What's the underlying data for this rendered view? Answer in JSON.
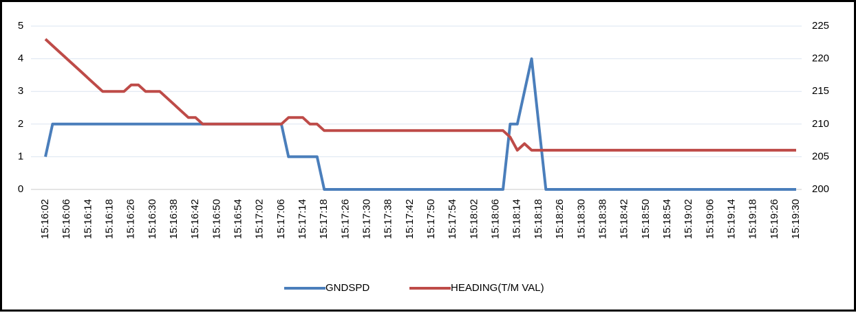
{
  "chart_data": {
    "type": "line",
    "categories": [
      "15:16:02",
      null,
      null,
      "15:16:06",
      null,
      null,
      "15:16:14",
      null,
      null,
      "15:16:18",
      null,
      null,
      "15:16:26",
      null,
      null,
      "15:16:30",
      null,
      null,
      "15:16:38",
      null,
      null,
      "15:16:42",
      null,
      null,
      "15:16:50",
      null,
      null,
      "15:16:54",
      null,
      null,
      "15:17:02",
      null,
      null,
      "15:17:06",
      null,
      null,
      "15:17:14",
      null,
      null,
      "15:17:18",
      null,
      null,
      "15:17:26",
      null,
      null,
      "15:17:30",
      null,
      null,
      "15:17:38",
      null,
      null,
      "15:17:42",
      null,
      null,
      "15:17:50",
      null,
      null,
      "15:17:54",
      null,
      null,
      "15:18:02",
      null,
      null,
      "15:18:06",
      null,
      null,
      "15:18:14",
      null,
      null,
      "15:18:18",
      null,
      null,
      "15:18:26",
      null,
      null,
      "15:18:30",
      null,
      null,
      "15:18:38",
      null,
      null,
      "15:18:42",
      null,
      null,
      "15:18:50",
      null,
      null,
      "15:18:54",
      null,
      null,
      "15:19:02",
      null,
      null,
      "15:19:06",
      null,
      null,
      "15:19:14",
      null,
      null,
      "15:19:18",
      null,
      null,
      "15:19:26",
      null,
      null,
      "15:19:30"
    ],
    "series": [
      {
        "name": "GNDSPD",
        "color": "#4a7ebb",
        "values": [
          1,
          2,
          2,
          2,
          2,
          2,
          2,
          2,
          2,
          2,
          2,
          2,
          2,
          2,
          2,
          2,
          2,
          2,
          2,
          2,
          2,
          2,
          2,
          2,
          2,
          2,
          2,
          2,
          2,
          2,
          2,
          2,
          2,
          2,
          1,
          1,
          1,
          1,
          1,
          0,
          0,
          0,
          0,
          0,
          0,
          0,
          0,
          0,
          0,
          0,
          0,
          0,
          0,
          0,
          0,
          0,
          0,
          0,
          0,
          0,
          0,
          0,
          0,
          0,
          0,
          2,
          2,
          3,
          4,
          2,
          0,
          0,
          0,
          0,
          0,
          0,
          0,
          0,
          0,
          0,
          0,
          0,
          0,
          0,
          0,
          0,
          0,
          0,
          0,
          0,
          0,
          0,
          0,
          0,
          0,
          0,
          0,
          0,
          0,
          0,
          0,
          0,
          0,
          0,
          0,
          0
        ]
      },
      {
        "name": "HEADING(T/M VAL)",
        "color": "#be4b48",
        "axis": "y2",
        "values": [
          223,
          222,
          221,
          220,
          219,
          218,
          217,
          216,
          215,
          215,
          215,
          215,
          216,
          216,
          215,
          215,
          215,
          214,
          213,
          212,
          211,
          211,
          210,
          210,
          210,
          210,
          210,
          210,
          210,
          210,
          210,
          210,
          210,
          210,
          211,
          211,
          211,
          210,
          210,
          209,
          209,
          209,
          209,
          209,
          209,
          209,
          209,
          209,
          209,
          209,
          209,
          209,
          209,
          209,
          209,
          209,
          209,
          209,
          209,
          209,
          209,
          209,
          209,
          209,
          209,
          208,
          206,
          207,
          206,
          206,
          206,
          206,
          206,
          206,
          206,
          206,
          206,
          206,
          206,
          206,
          206,
          206,
          206,
          206,
          206,
          206,
          206,
          206,
          206,
          206,
          206,
          206,
          206,
          206,
          206,
          206,
          206,
          206,
          206,
          206,
          206,
          206,
          206,
          206,
          206,
          206
        ]
      }
    ],
    "ylim": [
      0,
      5
    ],
    "yticks": [
      0,
      1,
      2,
      3,
      4,
      5
    ],
    "y2lim": [
      200,
      225
    ],
    "y2ticks": [
      200,
      205,
      210,
      215,
      220,
      225
    ],
    "grid": true,
    "legend": "bottom"
  }
}
